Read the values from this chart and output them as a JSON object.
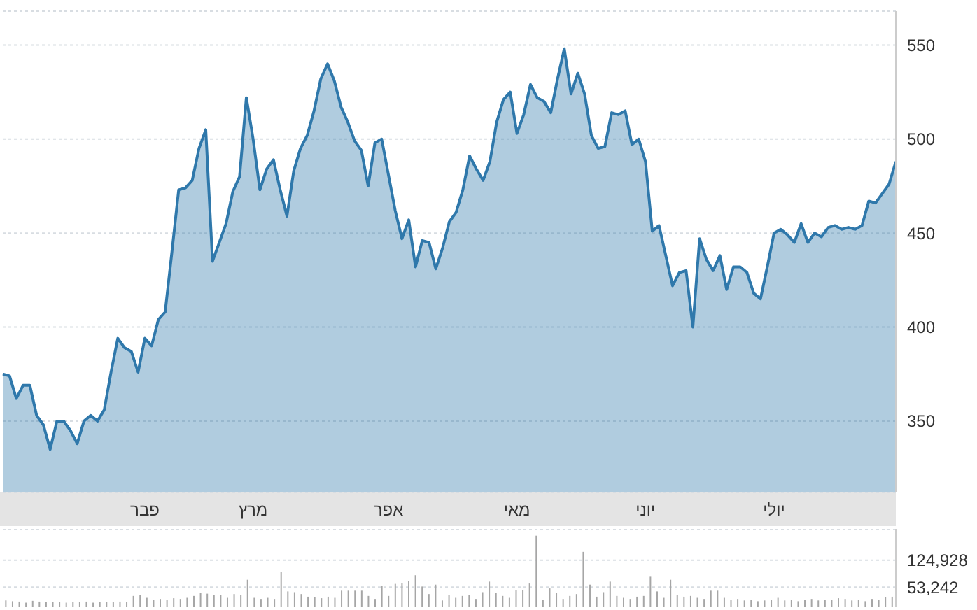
{
  "chart_data": [
    {
      "type": "area",
      "categories": [
        null,
        null,
        null,
        null,
        null,
        null,
        null,
        null,
        null,
        null,
        null,
        null,
        null,
        null,
        null,
        null,
        null,
        null,
        null,
        null,
        null,
        "פבר",
        null,
        null,
        null,
        null,
        null,
        null,
        null,
        null,
        null,
        null,
        null,
        null,
        null,
        null,
        null,
        "מרץ",
        null,
        null,
        null,
        null,
        null,
        null,
        null,
        null,
        null,
        null,
        null,
        null,
        null,
        null,
        null,
        null,
        null,
        null,
        null,
        "אפר",
        null,
        null,
        null,
        null,
        null,
        null,
        null,
        null,
        null,
        null,
        null,
        null,
        null,
        null,
        null,
        null,
        null,
        null,
        "מאי",
        null,
        null,
        null,
        null,
        null,
        null,
        null,
        null,
        null,
        null,
        null,
        null,
        null,
        null,
        null,
        null,
        null,
        null,
        "יוני",
        null,
        null,
        null,
        null,
        null,
        null,
        null,
        null,
        null,
        null,
        null,
        null,
        null,
        null,
        null,
        null,
        null,
        null,
        "יולי",
        null,
        null,
        null,
        null,
        null,
        null,
        null,
        null,
        null,
        null,
        null,
        null,
        null,
        null,
        null,
        null,
        null,
        null
      ],
      "series": [
        {
          "color": "#2f78ab",
          "values": [
            375,
            374,
            362,
            369,
            369,
            353,
            348,
            335,
            350,
            350,
            345,
            338,
            350,
            353,
            350,
            356,
            376,
            394,
            389,
            387,
            376,
            394,
            390,
            404,
            408,
            440,
            473,
            474,
            478,
            495,
            505,
            435,
            445,
            455,
            472,
            480,
            522,
            500,
            473,
            484,
            489,
            473,
            459,
            483,
            495,
            502,
            515,
            532,
            540,
            531,
            517,
            509,
            499,
            494,
            475,
            498,
            500,
            481,
            462,
            447,
            457,
            432,
            446,
            445,
            431,
            442,
            456,
            461,
            473,
            491,
            484,
            478,
            488,
            509,
            521,
            525,
            503,
            513,
            529,
            522,
            520,
            514,
            532,
            548,
            524,
            535,
            524,
            502,
            495,
            496,
            514,
            513,
            515,
            497,
            500,
            488,
            451,
            454,
            438,
            422,
            429,
            430,
            400,
            447,
            436,
            430,
            438,
            420,
            432,
            432,
            429,
            418,
            415,
            432,
            450,
            452,
            449,
            445,
            455,
            445,
            450,
            448,
            453,
            454,
            452,
            453,
            452,
            454,
            467,
            466,
            471,
            476,
            488
          ]
        }
      ],
      "ylim": [
        312,
        568
      ],
      "yticks": [
        350,
        400,
        450,
        500,
        550
      ],
      "grid": "y"
    },
    {
      "type": "bar",
      "categories": [
        null,
        null,
        null,
        null,
        null,
        null,
        null,
        null,
        null,
        null,
        null,
        null,
        null,
        null,
        null,
        null,
        null,
        null,
        null,
        null,
        null,
        null,
        null,
        null,
        null,
        null,
        null,
        null,
        null,
        null,
        null,
        null,
        null,
        null,
        null,
        null,
        null,
        null,
        null,
        null,
        null,
        null,
        null,
        null,
        null,
        null,
        null,
        null,
        null,
        null,
        null,
        null,
        null,
        null,
        null,
        null,
        null,
        null,
        null,
        null,
        null,
        null,
        null,
        null,
        null,
        null,
        null,
        null,
        null,
        null,
        null,
        null,
        null,
        null,
        null,
        null,
        null,
        null,
        null,
        null,
        null,
        null,
        null,
        null,
        null,
        null,
        null,
        null,
        null,
        null,
        null,
        null,
        null,
        null,
        null,
        null,
        null,
        null,
        null,
        null,
        null,
        null,
        null,
        null,
        null,
        null,
        null,
        null,
        null,
        null,
        null,
        null,
        null,
        null,
        null,
        null,
        null,
        null,
        null,
        null,
        null,
        null,
        null,
        null,
        null,
        null,
        null,
        null,
        null,
        null,
        null,
        null,
        null
      ],
      "series": [
        {
          "color": "#a6a6a6",
          "values": [
            18000,
            16000,
            15000,
            12000,
            17000,
            15000,
            14000,
            13000,
            13000,
            12000,
            13000,
            13000,
            15000,
            12000,
            13000,
            14000,
            13000,
            15000,
            13000,
            30000,
            33000,
            25000,
            20000,
            22000,
            20000,
            24000,
            22000,
            25000,
            30000,
            38000,
            36000,
            33000,
            32000,
            25000,
            35000,
            32000,
            73000,
            25000,
            22000,
            25000,
            22000,
            93000,
            42000,
            40000,
            35000,
            28000,
            26000,
            24000,
            28000,
            25000,
            44000,
            44000,
            44000,
            44000,
            30000,
            22000,
            56000,
            30000,
            62000,
            65000,
            70000,
            85000,
            55000,
            35000,
            60000,
            18000,
            33000,
            25000,
            30000,
            33000,
            22000,
            40000,
            68000,
            38000,
            30000,
            25000,
            45000,
            45000,
            63000,
            190000,
            20000,
            50000,
            38000,
            22000,
            30000,
            35000,
            147000,
            60000,
            28000,
            40000,
            68000,
            30000,
            25000,
            22000,
            28000,
            30000,
            81000,
            42000,
            25000,
            73000,
            33000,
            28000,
            30000,
            25000,
            22000,
            44000,
            44000,
            25000,
            20000,
            22000,
            18000,
            20000,
            16000,
            18000,
            20000,
            25000,
            18000,
            20000,
            16000,
            20000,
            22000,
            18000,
            20000,
            20000,
            24000,
            22000,
            18000,
            20000,
            16000,
            22000,
            20000,
            26000,
            28000
          ]
        }
      ],
      "ylim": [
        0,
        208000
      ],
      "yticks": [
        {
          "value": 53242,
          "label": "53,242"
        },
        {
          "value": 124928,
          "label": "124,928"
        }
      ],
      "grid": "y"
    }
  ]
}
